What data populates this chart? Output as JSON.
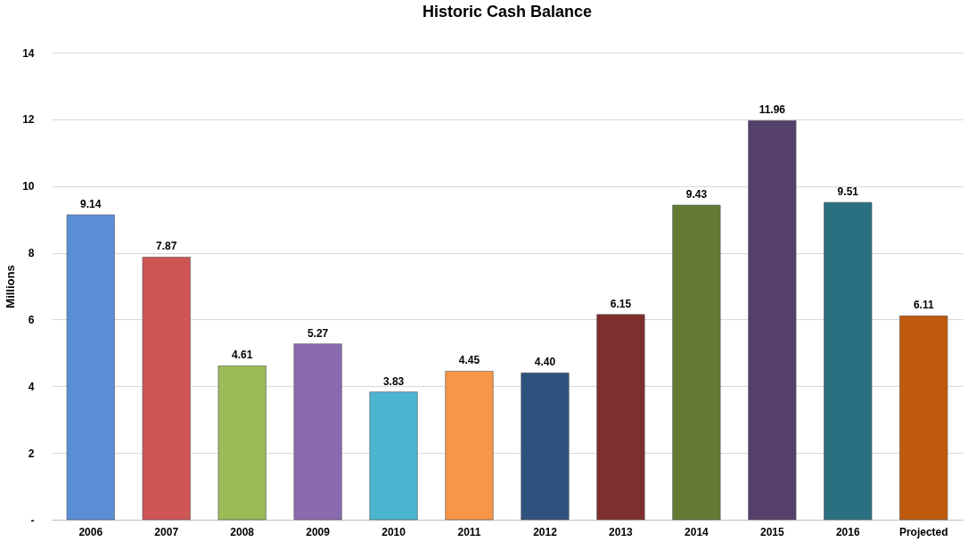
{
  "chart_data": {
    "type": "bar",
    "title": "Historic Cash Balance",
    "ylabel": "Millions",
    "categories": [
      "2006",
      "2007",
      "2008",
      "2009",
      "2010",
      "2011",
      "2012",
      "2013",
      "2014",
      "2015",
      "2016",
      "Projected"
    ],
    "values": [
      9.14,
      7.87,
      4.61,
      5.27,
      3.83,
      4.45,
      4.4,
      6.15,
      9.43,
      11.96,
      9.51,
      6.11
    ],
    "colors": [
      "#5a8fd6",
      "#d05555",
      "#9bbb59",
      "#8a6bb0",
      "#4bb5d0",
      "#f79646",
      "#2f527e",
      "#7e2e2c",
      "#637a33",
      "#553f6b",
      "#2a7080",
      "#c05a0c"
    ],
    "ylim": [
      0,
      14
    ],
    "yticks": [
      {
        "value": 0,
        "label": "-"
      },
      2,
      4,
      6,
      8,
      10,
      12,
      14
    ],
    "value_labels": [
      "9.14",
      "7.87",
      "4.61",
      "5.27",
      "3.83",
      "4.45",
      "4.40",
      "6.15",
      "9.43",
      "11.96",
      "9.51",
      "6.11"
    ],
    "grid": "y",
    "legend": false
  }
}
